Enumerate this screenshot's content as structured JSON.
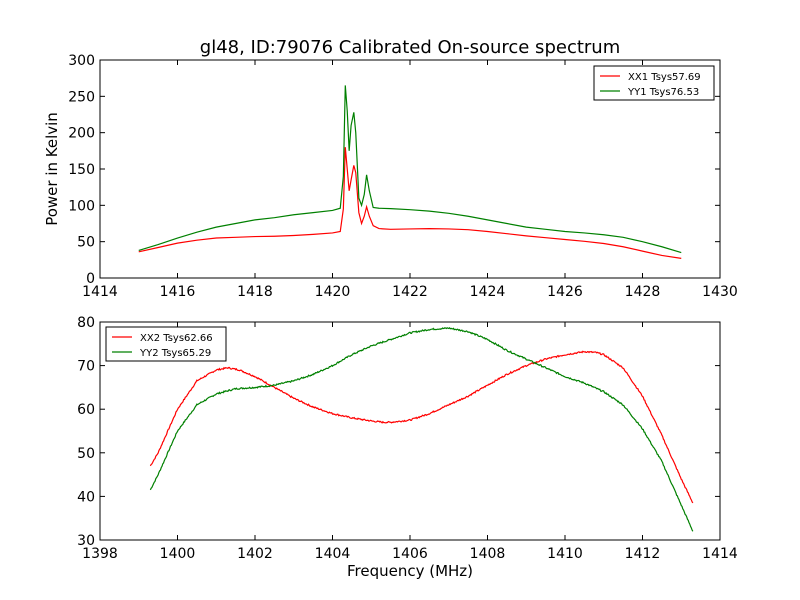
{
  "chart_data": [
    {
      "type": "line",
      "title": "gl48, ID:79076 Calibrated On-source spectrum",
      "xlabel": "",
      "ylabel": "Power in Kelvin",
      "xlim": [
        1414,
        1430
      ],
      "ylim": [
        0,
        300
      ],
      "xticks": [
        1414,
        1416,
        1418,
        1420,
        1422,
        1424,
        1426,
        1428,
        1430
      ],
      "yticks": [
        0,
        50,
        100,
        150,
        200,
        250,
        300
      ],
      "legend_position": "top-right",
      "grid": false,
      "series": [
        {
          "name": "XX1 Tsys57.69",
          "color": "#ff0000",
          "points": [
            [
              1415.0,
              36
            ],
            [
              1415.5,
              42
            ],
            [
              1416.0,
              48
            ],
            [
              1416.5,
              52
            ],
            [
              1417.0,
              55
            ],
            [
              1417.5,
              56
            ],
            [
              1418.0,
              57
            ],
            [
              1418.5,
              57.5
            ],
            [
              1419.0,
              58.5
            ],
            [
              1419.5,
              60
            ],
            [
              1420.0,
              62
            ],
            [
              1420.2,
              64
            ],
            [
              1420.28,
              95
            ],
            [
              1420.33,
              180
            ],
            [
              1420.38,
              150
            ],
            [
              1420.43,
              120
            ],
            [
              1420.48,
              135
            ],
            [
              1420.55,
              155
            ],
            [
              1420.6,
              145
            ],
            [
              1420.68,
              90
            ],
            [
              1420.75,
              75
            ],
            [
              1420.82,
              85
            ],
            [
              1420.88,
              98
            ],
            [
              1420.95,
              85
            ],
            [
              1421.05,
              72
            ],
            [
              1421.2,
              68
            ],
            [
              1421.5,
              67
            ],
            [
              1422.0,
              67.5
            ],
            [
              1422.5,
              68
            ],
            [
              1423.0,
              67.5
            ],
            [
              1423.5,
              66.5
            ],
            [
              1424.0,
              64
            ],
            [
              1424.5,
              61
            ],
            [
              1425.0,
              58
            ],
            [
              1425.5,
              55.5
            ],
            [
              1426.0,
              53
            ],
            [
              1426.5,
              50.5
            ],
            [
              1427.0,
              47.5
            ],
            [
              1427.5,
              43
            ],
            [
              1428.0,
              37
            ],
            [
              1428.5,
              31
            ],
            [
              1429.0,
              27
            ]
          ]
        },
        {
          "name": "YY1 Tsys76.53",
          "color": "#008000",
          "points": [
            [
              1415.0,
              38
            ],
            [
              1415.5,
              46
            ],
            [
              1416.0,
              55
            ],
            [
              1416.5,
              63
            ],
            [
              1417.0,
              70
            ],
            [
              1417.5,
              75
            ],
            [
              1418.0,
              80
            ],
            [
              1418.5,
              83
            ],
            [
              1419.0,
              87
            ],
            [
              1419.5,
              90
            ],
            [
              1420.0,
              93
            ],
            [
              1420.2,
              96
            ],
            [
              1420.28,
              140
            ],
            [
              1420.33,
              265
            ],
            [
              1420.38,
              230
            ],
            [
              1420.43,
              175
            ],
            [
              1420.48,
              210
            ],
            [
              1420.55,
              228
            ],
            [
              1420.6,
              200
            ],
            [
              1420.68,
              110
            ],
            [
              1420.75,
              100
            ],
            [
              1420.82,
              115
            ],
            [
              1420.88,
              142
            ],
            [
              1420.95,
              120
            ],
            [
              1421.05,
              97
            ],
            [
              1421.2,
              96
            ],
            [
              1421.5,
              95.5
            ],
            [
              1422.0,
              94
            ],
            [
              1422.5,
              92
            ],
            [
              1423.0,
              89
            ],
            [
              1423.5,
              85
            ],
            [
              1424.0,
              80
            ],
            [
              1424.5,
              75
            ],
            [
              1425.0,
              70
            ],
            [
              1425.5,
              67
            ],
            [
              1426.0,
              64
            ],
            [
              1426.5,
              62
            ],
            [
              1427.0,
              59.5
            ],
            [
              1427.5,
              56
            ],
            [
              1428.0,
              50
            ],
            [
              1428.5,
              43
            ],
            [
              1429.0,
              35
            ]
          ]
        }
      ]
    },
    {
      "type": "line",
      "title": "",
      "xlabel": "Frequency (MHz)",
      "ylabel": "",
      "xlim": [
        1398,
        1414
      ],
      "ylim": [
        30,
        80
      ],
      "xticks": [
        1398,
        1400,
        1402,
        1404,
        1406,
        1408,
        1410,
        1412,
        1414
      ],
      "yticks": [
        30,
        40,
        50,
        60,
        70,
        80
      ],
      "legend_position": "top-left",
      "grid": false,
      "series": [
        {
          "name": "XX2 Tsys62.66",
          "color": "#ff0000",
          "points": [
            [
              1399.3,
              47
            ],
            [
              1399.5,
              50
            ],
            [
              1400.0,
              60
            ],
            [
              1400.5,
              66.5
            ],
            [
              1401.0,
              69
            ],
            [
              1401.3,
              69.5
            ],
            [
              1401.6,
              69
            ],
            [
              1402.0,
              67.5
            ],
            [
              1402.5,
              65
            ],
            [
              1403.0,
              62.5
            ],
            [
              1403.5,
              60.5
            ],
            [
              1404.0,
              59
            ],
            [
              1404.5,
              58
            ],
            [
              1405.0,
              57.3
            ],
            [
              1405.3,
              57
            ],
            [
              1405.5,
              57
            ],
            [
              1406.0,
              57.5
            ],
            [
              1406.5,
              59
            ],
            [
              1407.0,
              61
            ],
            [
              1407.5,
              63
            ],
            [
              1408.0,
              65.5
            ],
            [
              1408.5,
              68
            ],
            [
              1409.0,
              70
            ],
            [
              1409.5,
              71.5
            ],
            [
              1410.0,
              72.5
            ],
            [
              1410.5,
              73.2
            ],
            [
              1410.8,
              73
            ],
            [
              1411.0,
              72.5
            ],
            [
              1411.5,
              69.5
            ],
            [
              1412.0,
              63
            ],
            [
              1412.5,
              54
            ],
            [
              1413.0,
              44
            ],
            [
              1413.3,
              38.5
            ]
          ]
        },
        {
          "name": "YY2 Tsys65.29",
          "color": "#008000",
          "points": [
            [
              1399.3,
              41.5
            ],
            [
              1399.5,
              45
            ],
            [
              1400.0,
              55
            ],
            [
              1400.5,
              61
            ],
            [
              1401.0,
              63.5
            ],
            [
              1401.5,
              64.7
            ],
            [
              1402.0,
              65
            ],
            [
              1402.5,
              65.5
            ],
            [
              1403.0,
              66.5
            ],
            [
              1403.5,
              68
            ],
            [
              1404.0,
              70
            ],
            [
              1404.5,
              72.5
            ],
            [
              1405.0,
              74.5
            ],
            [
              1405.5,
              76
            ],
            [
              1406.0,
              77.5
            ],
            [
              1406.5,
              78.3
            ],
            [
              1407.0,
              78.6
            ],
            [
              1407.5,
              77.8
            ],
            [
              1408.0,
              76
            ],
            [
              1408.5,
              73.5
            ],
            [
              1409.0,
              71.5
            ],
            [
              1409.5,
              69.5
            ],
            [
              1410.0,
              67.5
            ],
            [
              1410.5,
              66
            ],
            [
              1411.0,
              64
            ],
            [
              1411.5,
              61
            ],
            [
              1412.0,
              55.5
            ],
            [
              1412.5,
              48
            ],
            [
              1413.0,
              38
            ],
            [
              1413.3,
              32
            ]
          ]
        }
      ]
    }
  ]
}
